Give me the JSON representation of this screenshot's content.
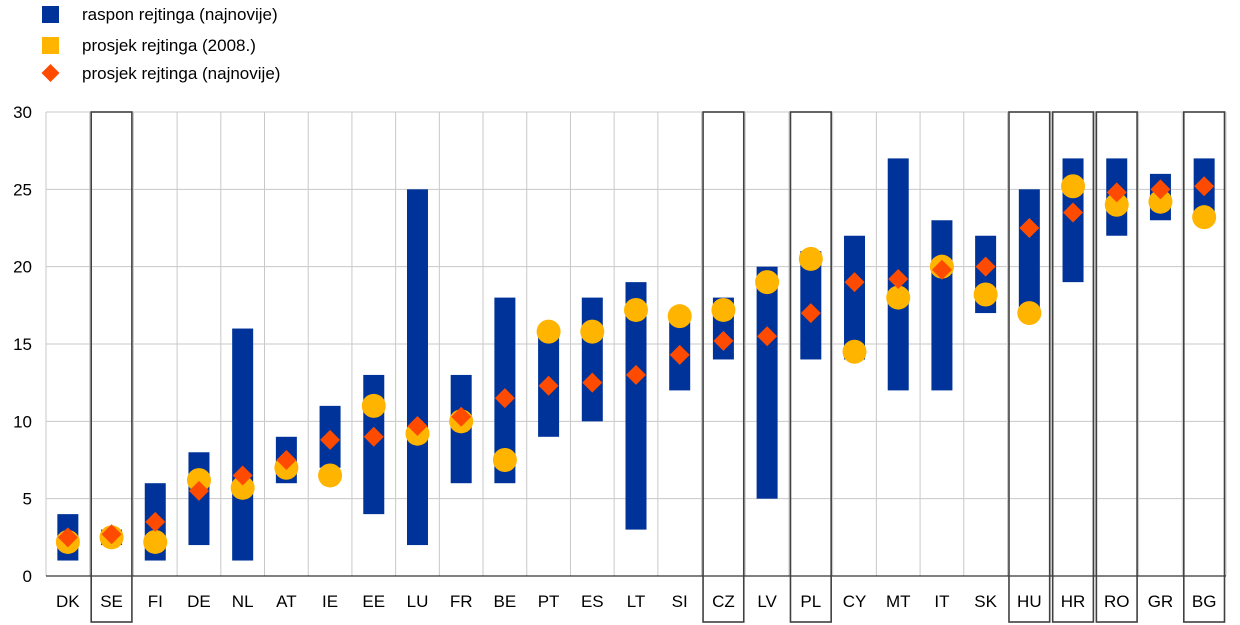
{
  "chart_data": {
    "type": "bar",
    "categories": [
      "DK",
      "SE",
      "FI",
      "DE",
      "NL",
      "AT",
      "IE",
      "EE",
      "LU",
      "FR",
      "BE",
      "PT",
      "ES",
      "LT",
      "SI",
      "CZ",
      "LV",
      "PL",
      "CY",
      "MT",
      "IT",
      "SK",
      "HU",
      "HR",
      "RO",
      "GR",
      "BG"
    ],
    "highlighted": [
      "SE",
      "CZ",
      "PL",
      "HU",
      "HR",
      "RO",
      "BG"
    ],
    "series": [
      {
        "name": "raspon rejtinga (najnovije)",
        "kind": "range-bar",
        "color": "#003399",
        "low": [
          1,
          2,
          1,
          2,
          1,
          6,
          7,
          4,
          2,
          6,
          6,
          9,
          10,
          3,
          12,
          14,
          5,
          14,
          14,
          12,
          12,
          17,
          17,
          19,
          22,
          23,
          23
        ],
        "high": [
          4,
          3,
          6,
          8,
          16,
          9,
          11,
          13,
          25,
          13,
          18,
          16,
          18,
          19,
          17,
          18,
          20,
          21,
          22,
          27,
          23,
          22,
          25,
          27,
          27,
          26,
          27
        ]
      },
      {
        "name": "prosjek rejtinga (2008.)",
        "kind": "circle",
        "color": "#ffb400",
        "values": [
          2.2,
          2.5,
          2.2,
          6.2,
          5.7,
          7.0,
          6.5,
          11.0,
          9.2,
          10.0,
          7.5,
          15.8,
          15.8,
          17.2,
          16.8,
          17.2,
          19.0,
          20.5,
          14.5,
          18.0,
          20.0,
          18.2,
          17.0,
          25.2,
          24.0,
          24.2,
          23.2
        ]
      },
      {
        "name": "prosjek rejtinga (najnovije)",
        "kind": "diamond",
        "color": "#ff4b00",
        "values": [
          2.5,
          2.7,
          3.5,
          5.5,
          6.5,
          7.5,
          8.8,
          9.0,
          9.7,
          10.3,
          11.5,
          12.3,
          12.5,
          13.0,
          14.3,
          15.2,
          15.5,
          17.0,
          19.0,
          19.2,
          19.8,
          20.0,
          22.5,
          23.5,
          24.8,
          25.0,
          25.2
        ]
      }
    ],
    "ylim": [
      0,
      30
    ],
    "yticks": [
      0,
      5,
      10,
      15,
      20,
      25,
      30
    ],
    "grid": true,
    "legend_position": "top-left",
    "title": "",
    "xlabel": "",
    "ylabel": ""
  }
}
